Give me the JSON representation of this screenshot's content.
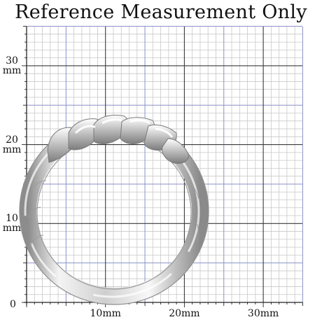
{
  "title": "Reference Measurement Only",
  "grid": {
    "unit": "mm",
    "range": [
      0,
      35
    ],
    "major_step": 10,
    "mid_step": 5,
    "minor_step": 1,
    "colors": {
      "minor": "#c8c8c8",
      "mid": "#8a92c8",
      "major": "#3a3a3a",
      "ring_fill": "#e8e8e8",
      "ring_shadow": "#9a9a9a"
    }
  },
  "y_labels": [
    {
      "value": 30,
      "number": "30",
      "unit": "mm"
    },
    {
      "value": 20,
      "number": "20",
      "unit": "mm"
    },
    {
      "value": 10,
      "number": "10",
      "unit": "mm"
    }
  ],
  "origin_label": "0",
  "x_labels": [
    {
      "value": 10,
      "text": "10mm"
    },
    {
      "value": 20,
      "text": "20mm"
    },
    {
      "value": 30,
      "text": "30mm"
    }
  ],
  "ring": {
    "product": "silver ring",
    "view": "side profile",
    "pattern": "twisted rope top"
  }
}
